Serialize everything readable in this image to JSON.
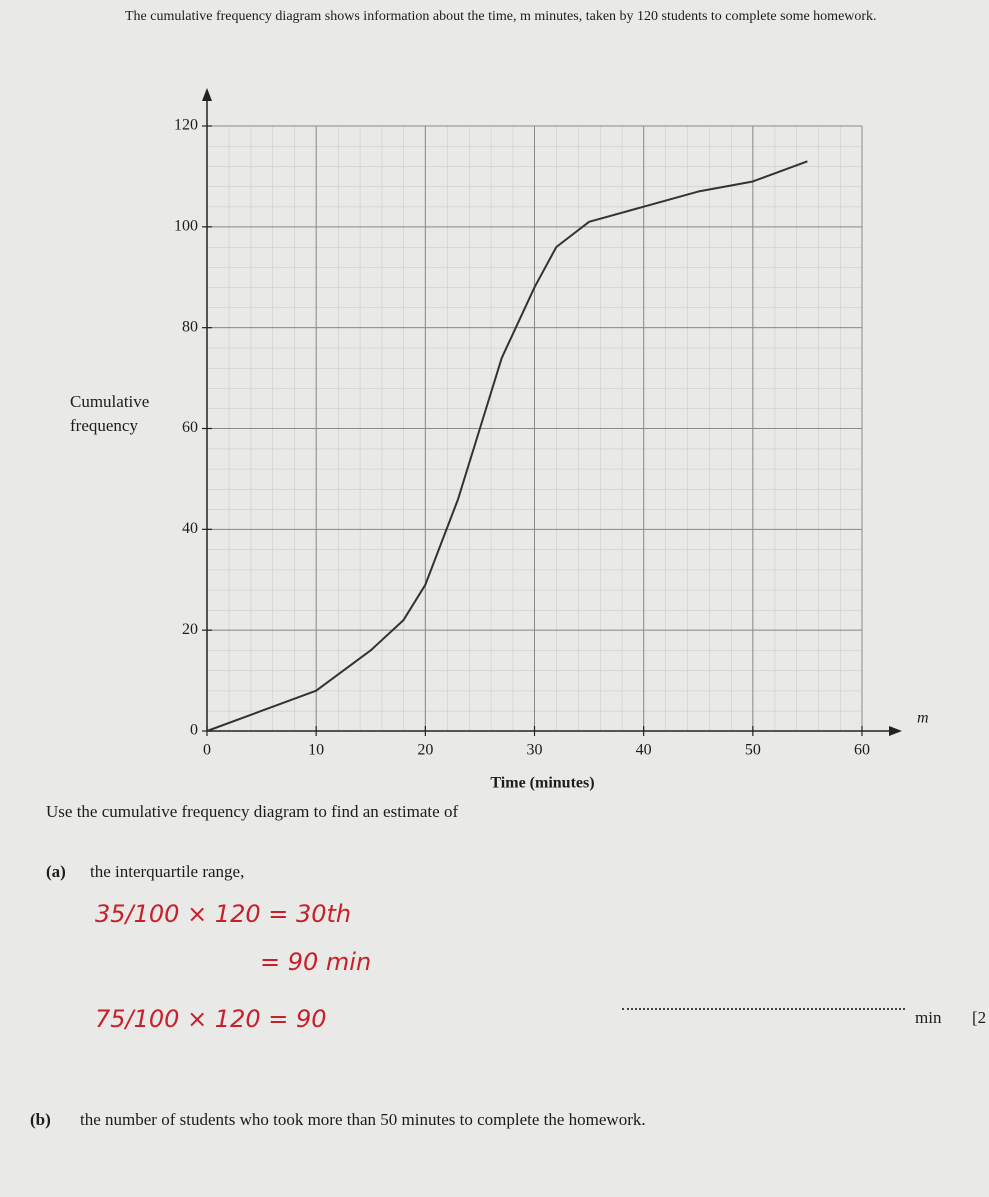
{
  "intro": "The cumulative frequency diagram shows information about the time, m minutes, taken by 120 students to complete some homework.",
  "chart_data": {
    "type": "line",
    "xlabel": "Time (minutes)",
    "ylabel": "Cumulative frequency",
    "x_variable": "m",
    "x": [
      0,
      5,
      10,
      15,
      18,
      20,
      23,
      25,
      27,
      30,
      32,
      35,
      40,
      45,
      50,
      55
    ],
    "values": [
      0,
      4,
      8,
      16,
      22,
      29,
      46,
      60,
      74,
      88,
      96,
      101,
      104,
      107,
      109,
      113
    ],
    "color": "#333333",
    "xlim": [
      0,
      60
    ],
    "ylim": [
      0,
      120
    ],
    "xticks": [
      0,
      10,
      20,
      30,
      40,
      50,
      60
    ],
    "yticks": [
      0,
      20,
      40,
      60,
      80,
      100,
      120
    ],
    "grid": true
  },
  "instruction": "Use the cumulative frequency diagram to find an estimate of",
  "questions": [
    {
      "label": "(a)",
      "text": "the interquartile range,",
      "unit": "min",
      "marks": "[2"
    },
    {
      "label": "(b)",
      "text": "the number of students who took more than 50 minutes to complete the homework."
    }
  ],
  "handwriting": [
    "35/100 × 120 = 30th",
    "= 90 min",
    "75/100 × 120 = 90"
  ]
}
